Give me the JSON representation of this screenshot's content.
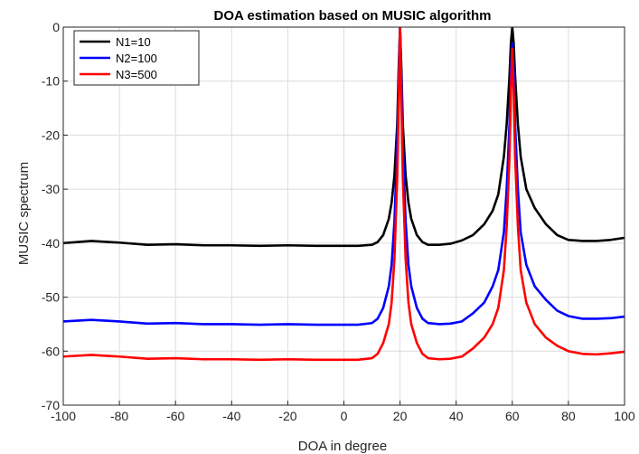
{
  "chart_data": {
    "type": "line",
    "title": "DOA estimation based on MUSIC algorithm",
    "xlabel": "DOA in degree",
    "ylabel": "MUSIC spectrum",
    "xlim": [
      -100,
      100
    ],
    "ylim": [
      -70,
      0
    ],
    "xticks": [
      -100,
      -80,
      -60,
      -40,
      -20,
      0,
      20,
      40,
      60,
      80,
      100
    ],
    "yticks": [
      -70,
      -60,
      -50,
      -40,
      -30,
      -20,
      -10,
      0
    ],
    "grid": true,
    "legend_position": "top-left",
    "series": [
      {
        "name": "N1=10",
        "color": "#000000",
        "x": [
          -100,
          -90,
          -80,
          -70,
          -60,
          -50,
          -40,
          -30,
          -20,
          -10,
          0,
          5,
          10,
          12,
          14,
          16,
          17,
          18,
          19,
          19.5,
          20,
          20.5,
          21,
          22,
          23,
          24,
          26,
          28,
          30,
          34,
          38,
          42,
          46,
          50,
          53,
          55,
          57,
          58,
          59,
          59.5,
          60,
          60.5,
          61,
          62,
          63,
          65,
          68,
          72,
          76,
          80,
          85,
          90,
          95,
          100
        ],
        "y": [
          -40,
          -39.6,
          -39.9,
          -40.3,
          -40.2,
          -40.4,
          -40.4,
          -40.5,
          -40.4,
          -40.5,
          -40.5,
          -40.5,
          -40.3,
          -39.8,
          -38.5,
          -35.5,
          -32.5,
          -27.5,
          -18,
          -8,
          0,
          -8,
          -18,
          -27.5,
          -32.5,
          -35.5,
          -38.5,
          -39.8,
          -40.3,
          -40.3,
          -40.1,
          -39.5,
          -38.5,
          -36.5,
          -34,
          -31,
          -24,
          -18,
          -9,
          -3,
          0,
          -3,
          -9,
          -18,
          -24,
          -30,
          -33.5,
          -36.5,
          -38.5,
          -39.4,
          -39.6,
          -39.6,
          -39.4,
          -39
        ]
      },
      {
        "name": "N2=100",
        "color": "#0000ff",
        "x": [
          -100,
          -90,
          -80,
          -70,
          -60,
          -50,
          -40,
          -30,
          -20,
          -10,
          0,
          5,
          10,
          12,
          14,
          16,
          17,
          18,
          19,
          19.5,
          20,
          20.5,
          21,
          22,
          23,
          24,
          26,
          28,
          30,
          34,
          38,
          42,
          46,
          50,
          53,
          55,
          57,
          58,
          59,
          59.5,
          60,
          60.5,
          61,
          62,
          63,
          65,
          68,
          72,
          76,
          80,
          85,
          90,
          95,
          100
        ],
        "y": [
          -54.5,
          -54.2,
          -54.5,
          -54.9,
          -54.8,
          -55,
          -55,
          -55.1,
          -55,
          -55.1,
          -55.1,
          -55.1,
          -54.8,
          -54,
          -52,
          -48,
          -44,
          -36,
          -22,
          -10,
          0,
          -10,
          -22,
          -36,
          -44,
          -48,
          -52,
          -54,
          -54.8,
          -55,
          -54.9,
          -54.5,
          -53,
          -51,
          -48,
          -45,
          -38,
          -30,
          -18,
          -8,
          -3,
          -8,
          -18,
          -30,
          -38,
          -44,
          -48,
          -50.5,
          -52.5,
          -53.5,
          -54,
          -54,
          -53.9,
          -53.6
        ]
      },
      {
        "name": "N3=500",
        "color": "#ff0000",
        "x": [
          -100,
          -90,
          -80,
          -70,
          -60,
          -50,
          -40,
          -30,
          -20,
          -10,
          0,
          5,
          10,
          12,
          14,
          16,
          17,
          18,
          19,
          19.5,
          20,
          20.5,
          21,
          22,
          23,
          24,
          26,
          28,
          30,
          34,
          38,
          42,
          46,
          50,
          53,
          55,
          57,
          58,
          59,
          59.5,
          60,
          60.5,
          61,
          62,
          63,
          65,
          68,
          72,
          76,
          80,
          85,
          90,
          95,
          100
        ],
        "y": [
          -61,
          -60.7,
          -61,
          -61.4,
          -61.3,
          -61.5,
          -61.5,
          -61.6,
          -61.5,
          -61.6,
          -61.6,
          -61.6,
          -61.3,
          -60.5,
          -58.5,
          -55,
          -51,
          -43,
          -28,
          -14,
          0,
          -14,
          -28,
          -43,
          -51,
          -55,
          -58.5,
          -60.5,
          -61.3,
          -61.5,
          -61.4,
          -61,
          -59.5,
          -57.5,
          -55,
          -52,
          -45,
          -37,
          -24,
          -12,
          -4,
          -12,
          -24,
          -37,
          -45,
          -51,
          -55,
          -57.5,
          -59,
          -60,
          -60.5,
          -60.6,
          -60.4,
          -60.1
        ]
      }
    ]
  }
}
